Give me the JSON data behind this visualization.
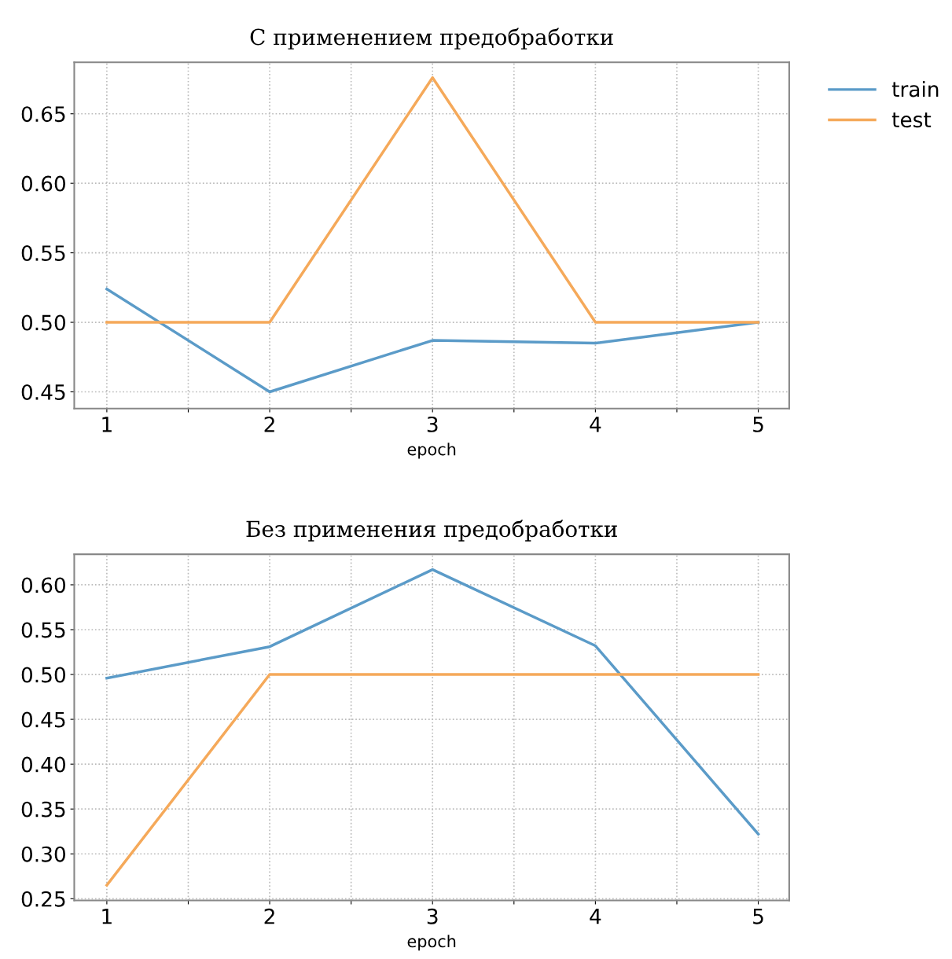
{
  "chart_data": [
    {
      "type": "line",
      "title": "С применением предобработки",
      "xlabel": "epoch",
      "x": [
        1,
        2,
        3,
        4,
        5
      ],
      "xlim": [
        0.8,
        5.19
      ],
      "xticks": [
        1,
        {
          "value": 1.5,
          "label": null
        },
        2,
        {
          "value": 2.5,
          "label": null
        },
        3,
        {
          "value": 3.5,
          "label": null
        },
        4,
        {
          "value": 4.5,
          "label": null
        },
        5
      ],
      "ylim": [
        0.438,
        0.687
      ],
      "yticks": [
        0.45,
        {
          "value": 0.5,
          "label": "0.50"
        },
        0.55,
        {
          "value": 0.6,
          "label": "0.60"
        },
        0.65
      ],
      "grid": true,
      "legend": "top right",
      "line_style": "solid",
      "series": [
        {
          "name": "train",
          "color": "#5b9bc8",
          "values": [
            0.524,
            0.45,
            0.487,
            0.485,
            0.5
          ]
        },
        {
          "name": "test",
          "color": "#f5a95a",
          "values": [
            0.5,
            0.5,
            0.676,
            0.5,
            0.5
          ]
        }
      ]
    },
    {
      "type": "line",
      "title": "Без применения предобработки",
      "xlabel": "epoch",
      "x": [
        1,
        2,
        3,
        4,
        5
      ],
      "xlim": [
        0.8,
        5.19
      ],
      "xticks": [
        1,
        {
          "value": 1.5,
          "label": null
        },
        2,
        {
          "value": 2.5,
          "label": null
        },
        3,
        {
          "value": 3.5,
          "label": null
        },
        4,
        {
          "value": 4.5,
          "label": null
        },
        5
      ],
      "ylim": [
        0.248,
        0.634
      ],
      "yticks": [
        0.25,
        {
          "value": 0.3,
          "label": "0.30"
        },
        0.35,
        {
          "value": 0.4,
          "label": "0.40"
        },
        0.45,
        {
          "value": 0.5,
          "label": "0.50"
        },
        0.55,
        {
          "value": 0.6,
          "label": "0.60"
        }
      ],
      "grid": true,
      "line_style": "solid",
      "series": [
        {
          "color": "#5b9bc8",
          "values": [
            0.496,
            0.531,
            0.617,
            0.532,
            0.322
          ]
        },
        {
          "color": "#f5a95a",
          "values": [
            0.265,
            0.5,
            0.5,
            0.5,
            0.5
          ]
        }
      ]
    }
  ]
}
